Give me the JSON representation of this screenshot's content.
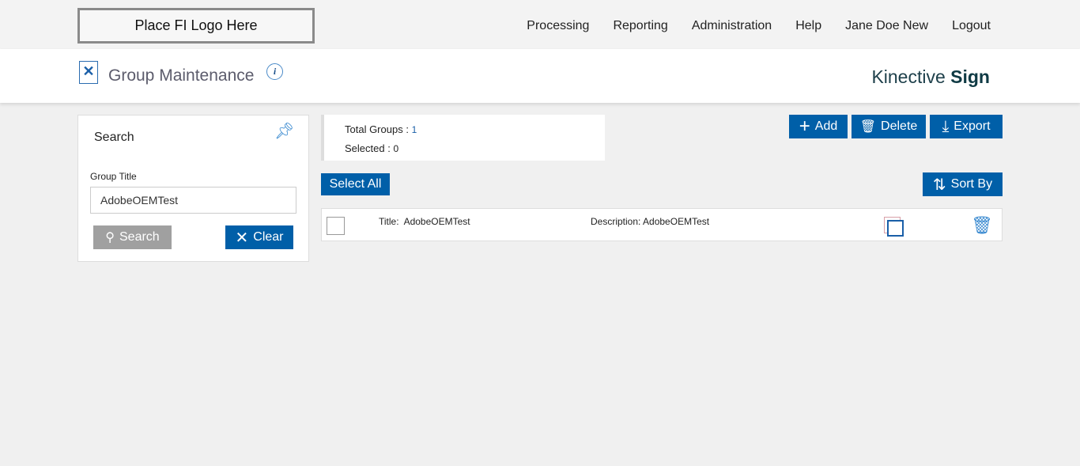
{
  "header": {
    "logo": "Place FI Logo Here",
    "nav": [
      "Processing",
      "Reporting",
      "Administration",
      "Help",
      "Jane Doe New",
      "Logout"
    ]
  },
  "subheader": {
    "title": "Group Maintenance",
    "info_icon": "i",
    "brand_light": "Kinective",
    "brand_bold": "Sign"
  },
  "search": {
    "heading": "Search",
    "field_label": "Group Title",
    "field_value": "AdobeOEMTest",
    "search_label": "Search",
    "clear_label": "Clear"
  },
  "stats": {
    "total_label": "Total Groups :",
    "total_value": "1",
    "selected_label": "Selected :",
    "selected_value": "0"
  },
  "toolbar": {
    "add": "Add",
    "delete": "Delete",
    "export": "Export",
    "select_all": "Select All",
    "sort_by": "Sort By"
  },
  "rows": [
    {
      "title_label": "Title:",
      "title": "AdobeOEMTest",
      "desc_label": "Description:",
      "description": "AdobeOEMTest"
    }
  ],
  "colors": {
    "accent": "#005fa8",
    "search_button": "#a0a0a0"
  }
}
